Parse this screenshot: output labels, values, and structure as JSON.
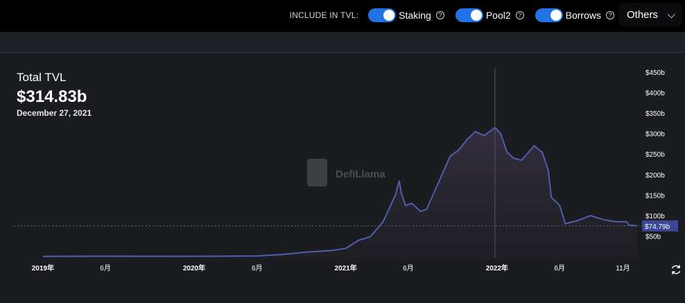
{
  "controls": {
    "include_label": "INCLUDE IN TVL:",
    "toggles": [
      {
        "label": "Staking",
        "on": true
      },
      {
        "label": "Pool2",
        "on": true
      },
      {
        "label": "Borrows",
        "on": true
      }
    ],
    "others_label": "Others"
  },
  "summary": {
    "title": "Total TVL",
    "value": "$314.83b",
    "date": "December 27, 2021"
  },
  "watermark": "DefiLlama",
  "colors": {
    "line": "#4f5fb0",
    "accent": "#2172e5",
    "current_badge": "#3b4898"
  },
  "chart_data": {
    "type": "area",
    "x_ticks": [
      "2019年",
      "6月",
      "2020年",
      "6月",
      "2021年",
      "6月",
      "2022年",
      "6月",
      "11月"
    ],
    "y_ticks": [
      "$50b",
      "$100b",
      "$150b",
      "$200b",
      "$250b",
      "$300b",
      "$350b",
      "$400b",
      "$450b"
    ],
    "ylim": [
      0,
      450
    ],
    "unit": "billions USD",
    "current_value_label": "$74.79b",
    "current_value": 74.79,
    "crosshair": {
      "x": "2021-12-27",
      "y": 314.83
    },
    "series": [
      {
        "points": [
          [
            "2019-01-01",
            0.5
          ],
          [
            "2019-06-01",
            0.8
          ],
          [
            "2019-12-01",
            0.7
          ],
          [
            "2020-03-01",
            0.9
          ],
          [
            "2020-06-01",
            1.5
          ],
          [
            "2020-08-01",
            5
          ],
          [
            "2020-10-01",
            11
          ],
          [
            "2020-12-01",
            15
          ],
          [
            "2021-01-01",
            20
          ],
          [
            "2021-02-01",
            40
          ],
          [
            "2021-03-01",
            48
          ],
          [
            "2021-04-01",
            85
          ],
          [
            "2021-05-01",
            150
          ],
          [
            "2021-05-10",
            185
          ],
          [
            "2021-05-15",
            155
          ],
          [
            "2021-05-25",
            125
          ],
          [
            "2021-06-10",
            130
          ],
          [
            "2021-06-30",
            110
          ],
          [
            "2021-07-15",
            115
          ],
          [
            "2021-08-15",
            185
          ],
          [
            "2021-09-10",
            245
          ],
          [
            "2021-10-01",
            260
          ],
          [
            "2021-10-20",
            285
          ],
          [
            "2021-11-10",
            305
          ],
          [
            "2021-12-01",
            295
          ],
          [
            "2021-12-27",
            314.83
          ],
          [
            "2022-01-10",
            300
          ],
          [
            "2022-01-25",
            255
          ],
          [
            "2022-02-10",
            240
          ],
          [
            "2022-03-01",
            235
          ],
          [
            "2022-04-01",
            270
          ],
          [
            "2022-04-20",
            255
          ],
          [
            "2022-05-05",
            210
          ],
          [
            "2022-05-12",
            145
          ],
          [
            "2022-06-01",
            125
          ],
          [
            "2022-06-15",
            80
          ],
          [
            "2022-07-15",
            88
          ],
          [
            "2022-08-15",
            100
          ],
          [
            "2022-09-15",
            90
          ],
          [
            "2022-10-15",
            85
          ],
          [
            "2022-11-10",
            85
          ],
          [
            "2022-11-15",
            77
          ],
          [
            "2022-12-05",
            74.79
          ]
        ]
      }
    ]
  }
}
